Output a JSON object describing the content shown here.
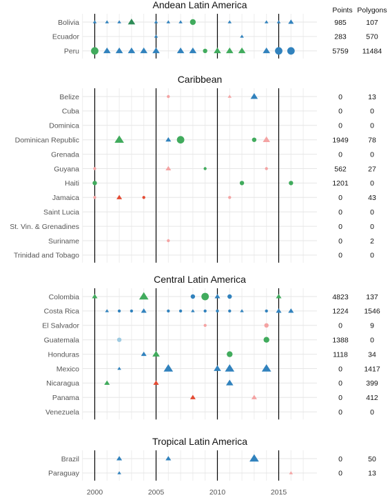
{
  "chart_data": {
    "type": "scatter",
    "x_axis": {
      "range": [
        1999,
        2017
      ],
      "ticks": [
        2000,
        2005,
        2010,
        2015
      ]
    },
    "reference_lines": [
      2000,
      2005,
      2010,
      2015
    ],
    "headers": {
      "points": "Points",
      "polygons": "Polygons"
    },
    "colors": {
      "blue": "#3182bd",
      "lightblue": "#9ecae1",
      "green": "#41ab5d",
      "darkgreen": "#2e8b57",
      "pink": "#f4a3a3",
      "red": "#e34a33"
    },
    "panels": [
      {
        "title": "Andean Latin America",
        "rows": [
          {
            "country": "Bolivia",
            "points": "985",
            "polygons": "107",
            "marks": [
              [
                2000,
                "tri",
                "blue",
                1
              ],
              [
                2001,
                "tri",
                "blue",
                1
              ],
              [
                2002,
                "tri",
                "blue",
                1
              ],
              [
                2003,
                "tri",
                "darkgreen",
                3
              ],
              [
                2005,
                "tri",
                "blue",
                1
              ],
              [
                2006,
                "tri",
                "blue",
                1
              ],
              [
                2007,
                "tri",
                "blue",
                1
              ],
              [
                2008,
                "dot",
                "green",
                3
              ],
              [
                2011,
                "tri",
                "blue",
                1
              ],
              [
                2014,
                "tri",
                "blue",
                1
              ],
              [
                2015,
                "tri",
                "blue",
                1
              ],
              [
                2016,
                "tri",
                "blue",
                2
              ]
            ]
          },
          {
            "country": "Ecuador",
            "points": "283",
            "polygons": "570",
            "marks": [
              [
                2005,
                "tri",
                "blue",
                1
              ],
              [
                2012,
                "tri",
                "blue",
                1
              ]
            ]
          },
          {
            "country": "Peru",
            "points": "5759",
            "polygons": "11484",
            "marks": [
              [
                2000,
                "dot",
                "green",
                4
              ],
              [
                2001,
                "tri",
                "blue",
                3
              ],
              [
                2002,
                "tri",
                "blue",
                3
              ],
              [
                2003,
                "tri",
                "blue",
                3
              ],
              [
                2004,
                "tri",
                "blue",
                3
              ],
              [
                2005,
                "tri",
                "blue",
                3
              ],
              [
                2007,
                "tri",
                "blue",
                3
              ],
              [
                2008,
                "tri",
                "blue",
                3
              ],
              [
                2009,
                "dot",
                "green",
                2
              ],
              [
                2010,
                "tri",
                "green",
                3
              ],
              [
                2011,
                "tri",
                "green",
                3
              ],
              [
                2012,
                "tri",
                "green",
                3
              ],
              [
                2014,
                "tri",
                "blue",
                3
              ],
              [
                2015,
                "dot",
                "blue",
                4
              ],
              [
                2016,
                "dot",
                "blue",
                4
              ]
            ]
          }
        ]
      },
      {
        "title": "Caribbean",
        "rows": [
          {
            "country": "Belize",
            "points": "0",
            "polygons": "13",
            "marks": [
              [
                2006,
                "dot",
                "pink",
                1
              ],
              [
                2011,
                "tri",
                "pink",
                1
              ],
              [
                2013,
                "tri",
                "blue",
                3
              ]
            ]
          },
          {
            "country": "Cuba",
            "points": "0",
            "polygons": "0",
            "marks": []
          },
          {
            "country": "Dominica",
            "points": "0",
            "polygons": "0",
            "marks": []
          },
          {
            "country": "Dominican Republic",
            "points": "1949",
            "polygons": "78",
            "marks": [
              [
                2002,
                "tri",
                "green",
                4
              ],
              [
                2006,
                "tri",
                "blue",
                2
              ],
              [
                2007,
                "dot",
                "green",
                4
              ],
              [
                2013,
                "dot",
                "green",
                2
              ],
              [
                2014,
                "tri",
                "pink",
                3
              ]
            ]
          },
          {
            "country": "Grenada",
            "points": "0",
            "polygons": "0",
            "marks": []
          },
          {
            "country": "Guyana",
            "points": "562",
            "polygons": "27",
            "marks": [
              [
                2000,
                "dot",
                "pink",
                1
              ],
              [
                2006,
                "tri",
                "pink",
                2
              ],
              [
                2009,
                "dot",
                "green",
                1
              ],
              [
                2014,
                "dot",
                "pink",
                1
              ]
            ]
          },
          {
            "country": "Haiti",
            "points": "1201",
            "polygons": "0",
            "marks": [
              [
                2000,
                "dot",
                "green",
                2
              ],
              [
                2012,
                "dot",
                "green",
                2
              ],
              [
                2016,
                "dot",
                "green",
                2
              ]
            ]
          },
          {
            "country": "Jamaica",
            "points": "0",
            "polygons": "43",
            "marks": [
              [
                2000,
                "dot",
                "pink",
                1
              ],
              [
                2002,
                "tri",
                "red",
                2
              ],
              [
                2004,
                "dot",
                "red",
                1
              ],
              [
                2011,
                "dot",
                "pink",
                1
              ]
            ]
          },
          {
            "country": "Saint Lucia",
            "points": "0",
            "polygons": "0",
            "marks": []
          },
          {
            "country": "St. Vin. & Grenadines",
            "points": "0",
            "polygons": "0",
            "marks": []
          },
          {
            "country": "Suriname",
            "points": "0",
            "polygons": "2",
            "marks": [
              [
                2006,
                "dot",
                "pink",
                1
              ]
            ]
          },
          {
            "country": "Trinidad and Tobago",
            "points": "0",
            "polygons": "0",
            "marks": []
          }
        ]
      },
      {
        "title": "Central Latin America",
        "rows": [
          {
            "country": "Colombia",
            "points": "4823",
            "polygons": "137",
            "marks": [
              [
                2000,
                "tri",
                "green",
                2
              ],
              [
                2004,
                "tri",
                "green",
                4
              ],
              [
                2008,
                "dot",
                "blue",
                2
              ],
              [
                2009,
                "dot",
                "green",
                4
              ],
              [
                2010,
                "tri",
                "blue",
                2
              ],
              [
                2011,
                "dot",
                "blue",
                2
              ],
              [
                2015,
                "tri",
                "green",
                2
              ]
            ]
          },
          {
            "country": "Costa Rica",
            "points": "1224",
            "polygons": "1546",
            "marks": [
              [
                2001,
                "tri",
                "blue",
                1
              ],
              [
                2002,
                "dot",
                "blue",
                1
              ],
              [
                2003,
                "dot",
                "blue",
                1
              ],
              [
                2004,
                "tri",
                "blue",
                2
              ],
              [
                2006,
                "dot",
                "blue",
                1
              ],
              [
                2007,
                "dot",
                "blue",
                1
              ],
              [
                2008,
                "tri",
                "blue",
                1
              ],
              [
                2009,
                "dot",
                "blue",
                1
              ],
              [
                2010,
                "dot",
                "blue",
                1
              ],
              [
                2011,
                "dot",
                "blue",
                1
              ],
              [
                2012,
                "tri",
                "blue",
                1
              ],
              [
                2014,
                "dot",
                "blue",
                1
              ],
              [
                2015,
                "tri",
                "blue",
                2
              ],
              [
                2016,
                "tri",
                "blue",
                2
              ]
            ]
          },
          {
            "country": "El Salvador",
            "points": "0",
            "polygons": "9",
            "marks": [
              [
                2009,
                "dot",
                "pink",
                1
              ],
              [
                2014,
                "dot",
                "pink",
                2
              ]
            ]
          },
          {
            "country": "Guatemala",
            "points": "1388",
            "polygons": "0",
            "marks": [
              [
                2002,
                "dot",
                "lightblue",
                2
              ],
              [
                2014,
                "dot",
                "green",
                3
              ]
            ]
          },
          {
            "country": "Honduras",
            "points": "1118",
            "polygons": "34",
            "marks": [
              [
                2004,
                "tri",
                "blue",
                2
              ],
              [
                2005,
                "tri",
                "green",
                3
              ],
              [
                2011,
                "dot",
                "green",
                3
              ]
            ]
          },
          {
            "country": "Mexico",
            "points": "0",
            "polygons": "1417",
            "marks": [
              [
                2002,
                "tri",
                "blue",
                1
              ],
              [
                2006,
                "tri",
                "blue",
                4
              ],
              [
                2010,
                "tri",
                "blue",
                3
              ],
              [
                2011,
                "tri",
                "blue",
                4
              ],
              [
                2014,
                "tri",
                "blue",
                4
              ]
            ]
          },
          {
            "country": "Nicaragua",
            "points": "0",
            "polygons": "399",
            "marks": [
              [
                2001,
                "tri",
                "green",
                2
              ],
              [
                2005,
                "tri",
                "red",
                2
              ],
              [
                2011,
                "tri",
                "blue",
                3
              ]
            ]
          },
          {
            "country": "Panama",
            "points": "0",
            "polygons": "412",
            "marks": [
              [
                2008,
                "tri",
                "red",
                2
              ],
              [
                2013,
                "tri",
                "pink",
                2
              ]
            ]
          },
          {
            "country": "Venezuela",
            "points": "0",
            "polygons": "0",
            "marks": []
          }
        ]
      },
      {
        "title": "Tropical Latin America",
        "rows": [
          {
            "country": "Brazil",
            "points": "0",
            "polygons": "50",
            "marks": [
              [
                2002,
                "tri",
                "blue",
                2
              ],
              [
                2006,
                "tri",
                "blue",
                2
              ],
              [
                2013,
                "tri",
                "blue",
                4
              ]
            ]
          },
          {
            "country": "Paraguay",
            "points": "0",
            "polygons": "13",
            "marks": [
              [
                2002,
                "tri",
                "blue",
                1
              ],
              [
                2016,
                "tri",
                "pink",
                1
              ]
            ]
          }
        ]
      }
    ]
  }
}
